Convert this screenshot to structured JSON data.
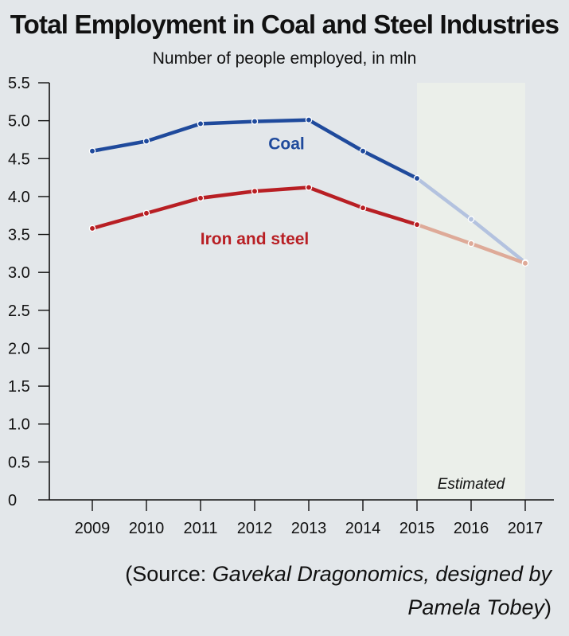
{
  "header": {
    "title": "Total Employment in Coal and Steel Industries",
    "subtitle": "Number of people employed, in mln"
  },
  "footer": {
    "source_open": "(Source: ",
    "source_body": "Gavekal Dragonomics, designed by Pamela Tobey",
    "source_close": ")"
  },
  "colors": {
    "background": "#e3e7ea",
    "estimated_band": "#ebefea",
    "coal": "#1f4a9c",
    "coal_estimated": "#b3c2df",
    "steel": "#b81f24",
    "steel_estimated": "#deaa98"
  },
  "chart_data": {
    "type": "line",
    "title": "Total Employment in Coal and Steel Industries",
    "subtitle": "Number of people employed, in mln",
    "x": [
      "2009",
      "2010",
      "2011",
      "2012",
      "2013",
      "2014",
      "2015",
      "2016",
      "2017"
    ],
    "y_ticks": [
      "0",
      "0.5",
      "1.0",
      "1.5",
      "2.0",
      "2.5",
      "3.0",
      "3.5",
      "4.0",
      "4.5",
      "5.0",
      "5.5"
    ],
    "ylim": [
      0,
      5.5
    ],
    "grid": false,
    "estimated_range": [
      "2015",
      "2017"
    ],
    "estimated_label": "Estimated",
    "series": [
      {
        "name": "Coal",
        "values": [
          4.6,
          4.73,
          4.96,
          4.99,
          5.01,
          4.6,
          4.24,
          3.7,
          3.13
        ]
      },
      {
        "name": "Iron and steel",
        "values": [
          3.58,
          3.78,
          3.98,
          4.07,
          4.12,
          3.85,
          3.63,
          3.38,
          3.12
        ]
      }
    ]
  }
}
